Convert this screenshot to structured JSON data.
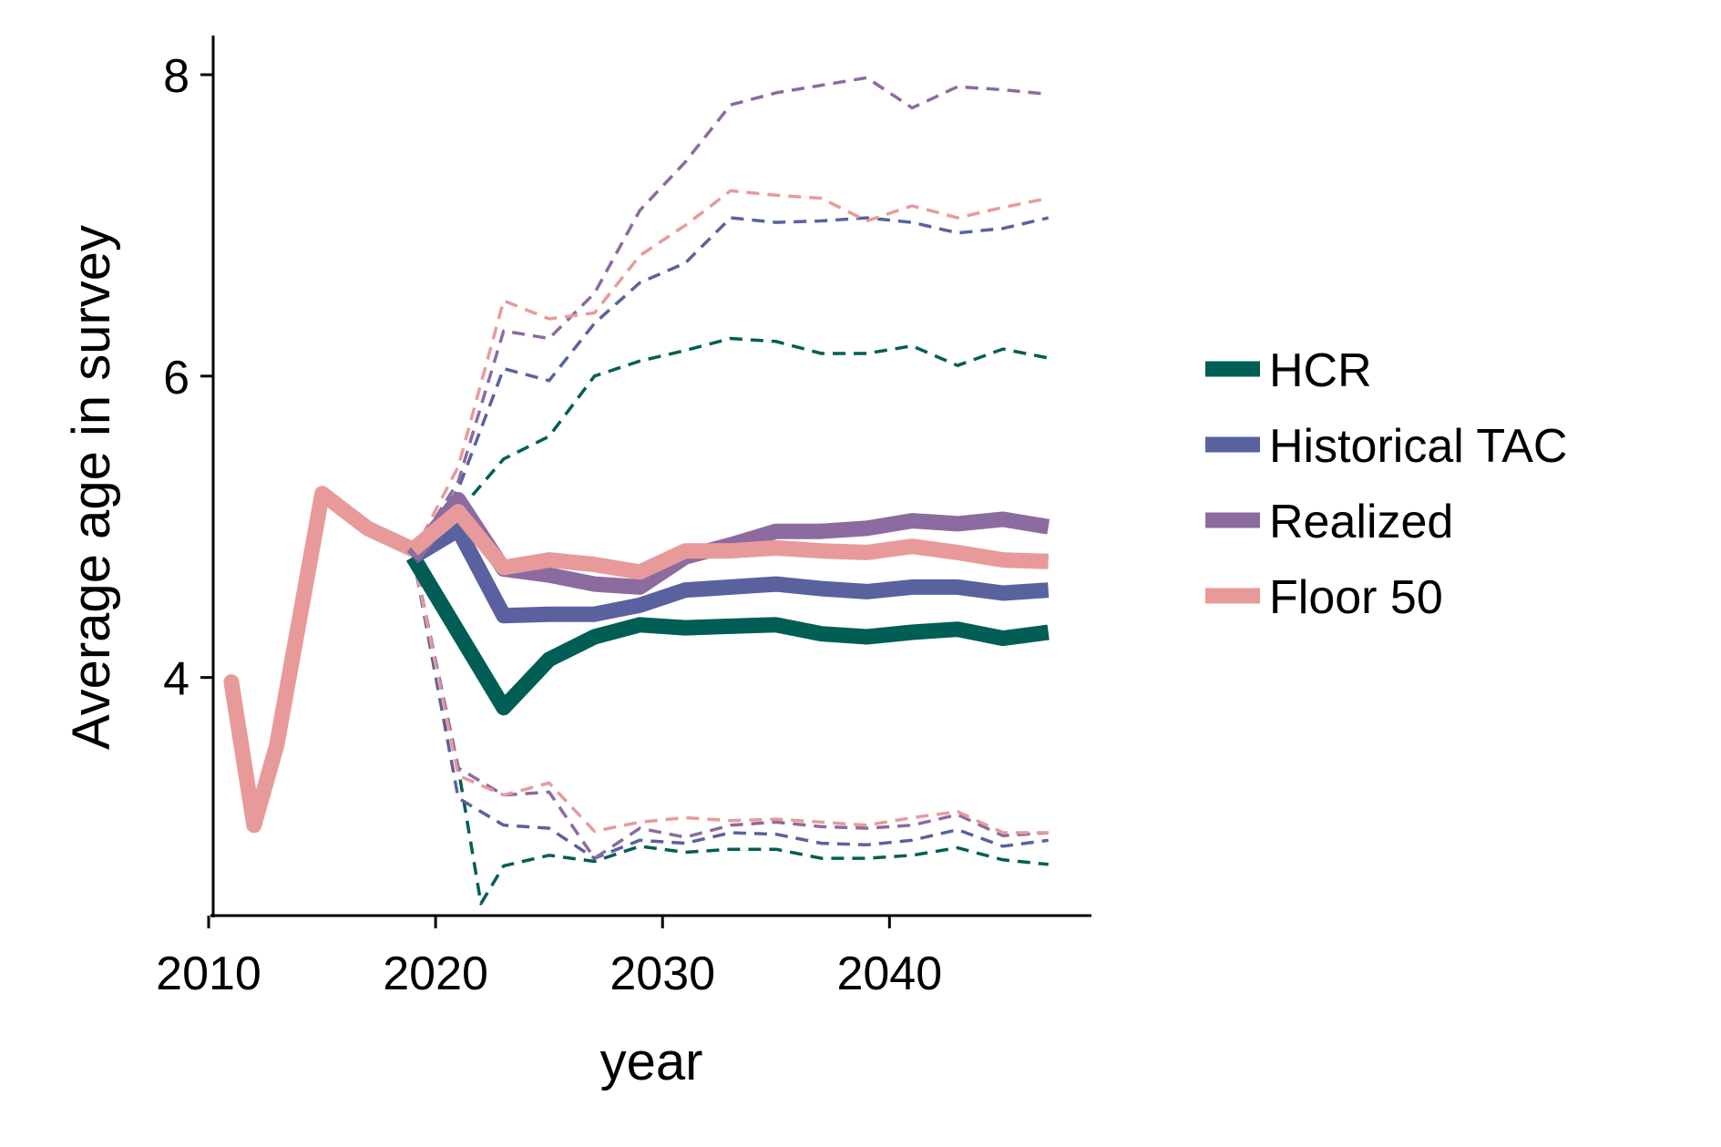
{
  "chart_data": {
    "type": "line",
    "xlabel": "year",
    "ylabel": "Average age in survey",
    "xlim": [
      2010.2,
      2048.9
    ],
    "ylim": [
      2.42,
      8.26
    ],
    "x_ticks": [
      2010,
      2020,
      2030,
      2040
    ],
    "y_ticks": [
      4,
      6,
      8
    ],
    "x_tick_labels": [
      "2010",
      "2020",
      "2030",
      "2040"
    ],
    "y_tick_labels": [
      "4",
      "6",
      "8"
    ],
    "grid": false,
    "legend_position": "right",
    "historical": {
      "name": "Floor 50",
      "color": "#e89a9a",
      "points": [
        [
          2011,
          3.97
        ],
        [
          2012,
          3.02
        ],
        [
          2013,
          3.55
        ],
        [
          2015,
          5.22
        ],
        [
          2017,
          4.99
        ],
        [
          2019,
          4.85
        ]
      ]
    },
    "series": [
      {
        "name": "HCR",
        "color": "#005e55",
        "median": [
          [
            2019,
            4.8
          ],
          [
            2021,
            4.3
          ],
          [
            2023,
            3.8
          ],
          [
            2025,
            4.12
          ],
          [
            2027,
            4.27
          ],
          [
            2029,
            4.35
          ],
          [
            2031,
            4.33
          ],
          [
            2033,
            4.34
          ],
          [
            2035,
            4.35
          ],
          [
            2037,
            4.29
          ],
          [
            2039,
            4.27
          ],
          [
            2041,
            4.3
          ],
          [
            2043,
            4.32
          ],
          [
            2045,
            4.26
          ],
          [
            2047,
            4.3
          ]
        ],
        "upper": [
          [
            2019,
            4.82
          ],
          [
            2021,
            5.1
          ],
          [
            2023,
            5.45
          ],
          [
            2025,
            5.6
          ],
          [
            2027,
            6.0
          ],
          [
            2029,
            6.1
          ],
          [
            2031,
            6.17
          ],
          [
            2033,
            6.25
          ],
          [
            2035,
            6.23
          ],
          [
            2037,
            6.15
          ],
          [
            2039,
            6.15
          ],
          [
            2041,
            6.2
          ],
          [
            2043,
            6.07
          ],
          [
            2045,
            6.18
          ],
          [
            2047,
            6.12
          ]
        ],
        "lower": [
          [
            2019,
            4.82
          ],
          [
            2021,
            3.4
          ],
          [
            2022,
            2.5
          ],
          [
            2023,
            2.75
          ],
          [
            2025,
            2.82
          ],
          [
            2027,
            2.78
          ],
          [
            2029,
            2.88
          ],
          [
            2031,
            2.84
          ],
          [
            2033,
            2.86
          ],
          [
            2035,
            2.86
          ],
          [
            2037,
            2.8
          ],
          [
            2039,
            2.8
          ],
          [
            2041,
            2.82
          ],
          [
            2043,
            2.87
          ],
          [
            2045,
            2.79
          ],
          [
            2047,
            2.76
          ]
        ]
      },
      {
        "name": "Historical TAC",
        "color": "#59629f",
        "median": [
          [
            2019,
            4.8
          ],
          [
            2021,
            4.98
          ],
          [
            2023,
            4.41
          ],
          [
            2025,
            4.42
          ],
          [
            2027,
            4.42
          ],
          [
            2029,
            4.48
          ],
          [
            2031,
            4.58
          ],
          [
            2033,
            4.6
          ],
          [
            2035,
            4.62
          ],
          [
            2037,
            4.59
          ],
          [
            2039,
            4.57
          ],
          [
            2041,
            4.6
          ],
          [
            2043,
            4.6
          ],
          [
            2045,
            4.56
          ],
          [
            2047,
            4.58
          ]
        ],
        "upper": [
          [
            2019,
            4.82
          ],
          [
            2021,
            5.25
          ],
          [
            2023,
            6.05
          ],
          [
            2025,
            5.97
          ],
          [
            2027,
            6.35
          ],
          [
            2029,
            6.62
          ],
          [
            2031,
            6.75
          ],
          [
            2033,
            7.05
          ],
          [
            2035,
            7.02
          ],
          [
            2037,
            7.03
          ],
          [
            2039,
            7.05
          ],
          [
            2041,
            7.02
          ],
          [
            2043,
            6.95
          ],
          [
            2045,
            6.98
          ],
          [
            2047,
            7.05
          ]
        ],
        "lower": [
          [
            2019,
            4.82
          ],
          [
            2021,
            3.2
          ],
          [
            2023,
            3.02
          ],
          [
            2025,
            3.0
          ],
          [
            2027,
            2.8
          ],
          [
            2029,
            2.92
          ],
          [
            2031,
            2.9
          ],
          [
            2033,
            2.97
          ],
          [
            2035,
            2.96
          ],
          [
            2037,
            2.9
          ],
          [
            2039,
            2.89
          ],
          [
            2041,
            2.92
          ],
          [
            2043,
            2.99
          ],
          [
            2045,
            2.88
          ],
          [
            2047,
            2.92
          ]
        ]
      },
      {
        "name": "Realized",
        "color": "#8c6ba0",
        "median": [
          [
            2019,
            4.8
          ],
          [
            2021,
            5.18
          ],
          [
            2023,
            4.72
          ],
          [
            2025,
            4.68
          ],
          [
            2027,
            4.62
          ],
          [
            2029,
            4.6
          ],
          [
            2031,
            4.8
          ],
          [
            2033,
            4.88
          ],
          [
            2035,
            4.97
          ],
          [
            2037,
            4.97
          ],
          [
            2039,
            4.99
          ],
          [
            2041,
            5.04
          ],
          [
            2043,
            5.02
          ],
          [
            2045,
            5.05
          ],
          [
            2047,
            5.0
          ]
        ],
        "upper": [
          [
            2019,
            4.82
          ],
          [
            2021,
            5.3
          ],
          [
            2023,
            6.3
          ],
          [
            2025,
            6.25
          ],
          [
            2027,
            6.55
          ],
          [
            2029,
            7.1
          ],
          [
            2031,
            7.42
          ],
          [
            2033,
            7.8
          ],
          [
            2035,
            7.88
          ],
          [
            2037,
            7.93
          ],
          [
            2039,
            7.98
          ],
          [
            2041,
            7.78
          ],
          [
            2043,
            7.92
          ],
          [
            2045,
            7.9
          ],
          [
            2047,
            7.87
          ]
        ],
        "lower": [
          [
            2019,
            4.82
          ],
          [
            2021,
            3.4
          ],
          [
            2023,
            3.22
          ],
          [
            2025,
            3.24
          ],
          [
            2027,
            2.8
          ],
          [
            2029,
            3.0
          ],
          [
            2031,
            2.94
          ],
          [
            2033,
            3.02
          ],
          [
            2035,
            3.04
          ],
          [
            2037,
            3.01
          ],
          [
            2039,
            3.0
          ],
          [
            2041,
            3.02
          ],
          [
            2043,
            3.09
          ],
          [
            2045,
            2.95
          ],
          [
            2047,
            2.97
          ]
        ]
      },
      {
        "name": "Floor 50",
        "color": "#e89a9a",
        "median": [
          [
            2019,
            4.85
          ],
          [
            2021,
            5.1
          ],
          [
            2023,
            4.73
          ],
          [
            2025,
            4.78
          ],
          [
            2027,
            4.75
          ],
          [
            2029,
            4.7
          ],
          [
            2031,
            4.84
          ],
          [
            2033,
            4.84
          ],
          [
            2035,
            4.86
          ],
          [
            2037,
            4.84
          ],
          [
            2039,
            4.83
          ],
          [
            2041,
            4.87
          ],
          [
            2043,
            4.83
          ],
          [
            2045,
            4.78
          ],
          [
            2047,
            4.77
          ]
        ],
        "upper": [
          [
            2019,
            4.82
          ],
          [
            2021,
            5.4
          ],
          [
            2023,
            6.5
          ],
          [
            2025,
            6.38
          ],
          [
            2027,
            6.42
          ],
          [
            2029,
            6.8
          ],
          [
            2031,
            7.0
          ],
          [
            2033,
            7.23
          ],
          [
            2035,
            7.2
          ],
          [
            2037,
            7.18
          ],
          [
            2039,
            7.03
          ],
          [
            2041,
            7.13
          ],
          [
            2043,
            7.05
          ],
          [
            2045,
            7.12
          ],
          [
            2047,
            7.18
          ]
        ],
        "lower": [
          [
            2019,
            4.82
          ],
          [
            2021,
            3.35
          ],
          [
            2023,
            3.22
          ],
          [
            2025,
            3.3
          ],
          [
            2027,
            2.98
          ],
          [
            2029,
            3.04
          ],
          [
            2031,
            3.07
          ],
          [
            2033,
            3.05
          ],
          [
            2035,
            3.06
          ],
          [
            2037,
            3.04
          ],
          [
            2039,
            3.02
          ],
          [
            2041,
            3.07
          ],
          [
            2043,
            3.11
          ],
          [
            2045,
            2.97
          ],
          [
            2047,
            2.97
          ]
        ]
      }
    ]
  }
}
